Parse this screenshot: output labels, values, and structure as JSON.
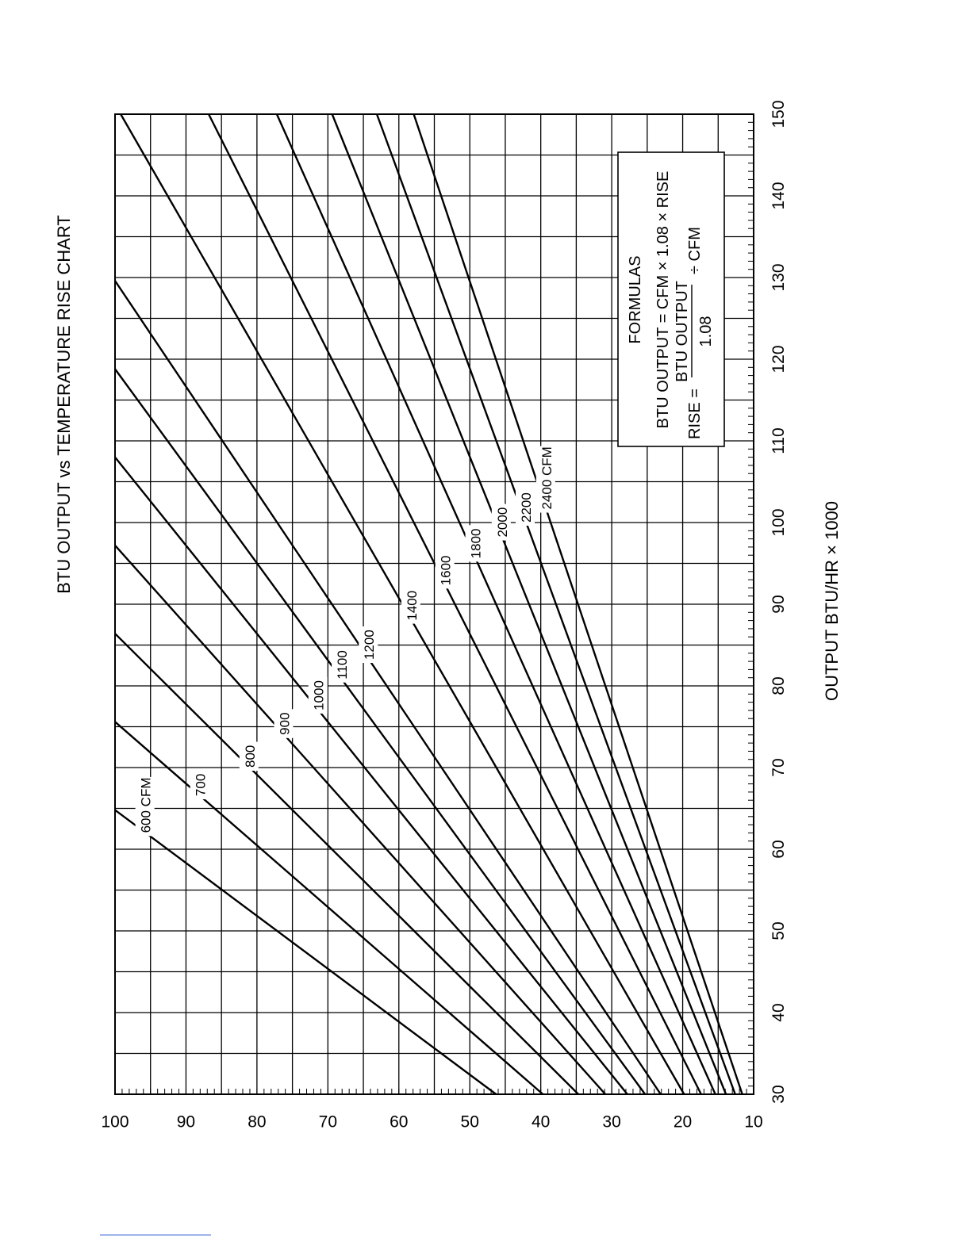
{
  "chart_data": {
    "type": "line",
    "title": "BTU  OUTPUT vs TEMPERATURE RISE CHART",
    "xlabel": "OUTPUT BTU/HR × 1000",
    "ylabel": "",
    "xlim": [
      30,
      150
    ],
    "ylim": [
      10,
      100
    ],
    "x_ticks": [
      "30",
      "40",
      "50",
      "60",
      "70",
      "80",
      "90",
      "100",
      "110",
      "120",
      "130",
      "140",
      "150"
    ],
    "y_ticks": [
      "100",
      "90",
      "80",
      "70",
      "60",
      "50",
      "40",
      "30",
      "20",
      "10"
    ],
    "grid": true,
    "orientation": "rotated 90° counter-clockwise",
    "formula_fn": "rise = (output × 1000) / (1.08 × cfm)",
    "series": [
      {
        "name": "600 CFM",
        "cfm": 600,
        "x": [
          30,
          64.8
        ],
        "y": [
          46.3,
          100
        ]
      },
      {
        "name": "700",
        "cfm": 700,
        "x": [
          30,
          75.6
        ],
        "y": [
          39.7,
          100
        ]
      },
      {
        "name": "800",
        "cfm": 800,
        "x": [
          30,
          86.4
        ],
        "y": [
          34.7,
          100
        ]
      },
      {
        "name": "900",
        "cfm": 900,
        "x": [
          30,
          97.2
        ],
        "y": [
          30.9,
          100
        ]
      },
      {
        "name": "1000",
        "cfm": 1000,
        "x": [
          30,
          108
        ],
        "y": [
          27.8,
          100
        ]
      },
      {
        "name": "1100",
        "cfm": 1100,
        "x": [
          30,
          118.8
        ],
        "y": [
          25.3,
          100
        ]
      },
      {
        "name": "1200",
        "cfm": 1200,
        "x": [
          30,
          129.6
        ],
        "y": [
          23.1,
          100
        ]
      },
      {
        "name": "1400",
        "cfm": 1400,
        "x": [
          30,
          150
        ],
        "y": [
          19.8,
          99.2
        ]
      },
      {
        "name": "1600",
        "cfm": 1600,
        "x": [
          30,
          150
        ],
        "y": [
          17.4,
          86.8
        ]
      },
      {
        "name": "1800",
        "cfm": 1800,
        "x": [
          30,
          150
        ],
        "y": [
          15.4,
          77.2
        ]
      },
      {
        "name": "2000",
        "cfm": 2000,
        "x": [
          30,
          150
        ],
        "y": [
          13.9,
          69.4
        ]
      },
      {
        "name": "2200",
        "cfm": 2200,
        "x": [
          30,
          150
        ],
        "y": [
          12.6,
          63.1
        ]
      },
      {
        "name": "2400 CFM",
        "cfm": 2400,
        "x": [
          30,
          150
        ],
        "y": [
          11.6,
          57.9
        ]
      }
    ]
  },
  "formulas": {
    "heading": "FORMULAS",
    "line1": "BTU OUTPUT = CFM × 1.08 × RISE",
    "line2_prefix": "RISE = ",
    "line2_numerator": "BTU OUTPUT",
    "line2_denominator": "1.08",
    "line2_suffix": "÷  CFM"
  }
}
